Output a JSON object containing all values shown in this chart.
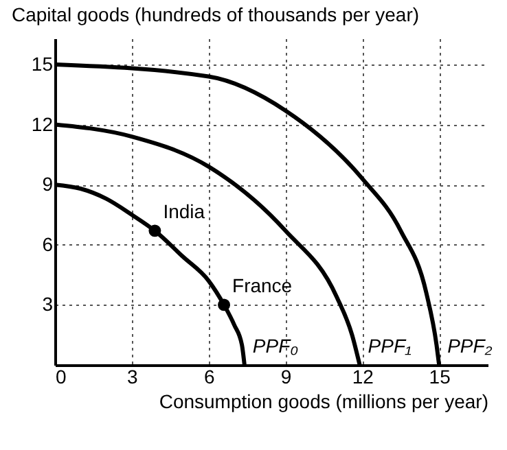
{
  "chart_data": {
    "type": "line",
    "xlabel": "Consumption goods (millions per year)",
    "ylabel": "Capital goods (hundreds of thousands per year)",
    "xlim": [
      0,
      16.9
    ],
    "ylim": [
      0,
      16.3
    ],
    "xticks": [
      0,
      3,
      6,
      9,
      12,
      15
    ],
    "yticks": [
      3,
      6,
      9,
      12,
      15
    ],
    "grid": true,
    "legend": false,
    "marker": "none",
    "line_style": "solid",
    "series": [
      {
        "name": "PPF₀",
        "color": "#000000",
        "x": [
          0,
          1,
          2,
          3,
          3.9,
          5,
          6,
          6.6,
          7,
          7.3,
          7.4
        ],
        "values": [
          9,
          8.8,
          8.3,
          7.5,
          6.7,
          5.4,
          4.2,
          3,
          2,
          1,
          0
        ]
      },
      {
        "name": "PPF₁",
        "color": "#000000",
        "x": [
          0,
          3,
          6,
          9,
          11,
          11.6,
          11.9
        ],
        "values": [
          12,
          11.4,
          9.9,
          6.7,
          3.4,
          1.5,
          0
        ]
      },
      {
        "name": "PPF₂",
        "color": "#000000",
        "x": [
          0,
          6,
          9,
          12,
          13.5,
          14.5,
          14.9,
          15
        ],
        "values": [
          15,
          14.4,
          12.7,
          9.3,
          6.7,
          3.6,
          1,
          0
        ]
      },
      {
        "type": "scatter",
        "marker": "circle",
        "color": "#000000",
        "x": [
          3.9,
          6.6
        ],
        "values": [
          6.7,
          3
        ]
      }
    ],
    "annotations": [
      {
        "text": "India",
        "x": 3.9,
        "y": 6.7
      },
      {
        "text": "France",
        "x": 6.6,
        "y": 3
      }
    ]
  }
}
